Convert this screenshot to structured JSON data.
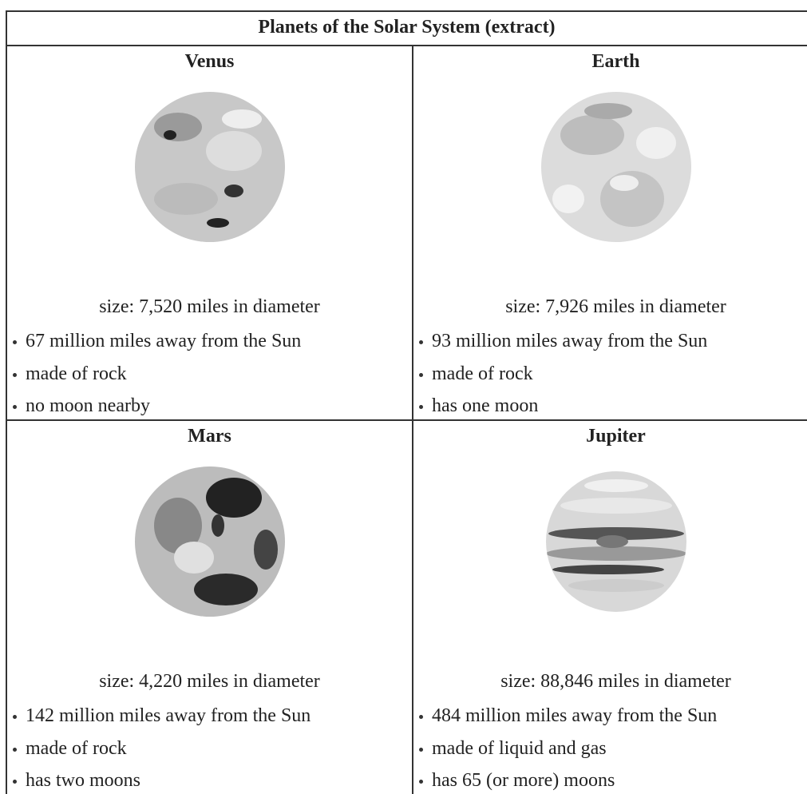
{
  "table": {
    "title": "Planets of the Solar System (extract)",
    "planets": [
      {
        "name": "Venus",
        "size": "size: 7,520 miles in diameter",
        "facts": [
          "67 million miles away from the Sun",
          "made of rock",
          "no moon nearby"
        ]
      },
      {
        "name": "Earth",
        "size": "size: 7,926 miles in diameter",
        "facts": [
          "93 million miles away from the Sun",
          "made of rock",
          "has one moon"
        ]
      },
      {
        "name": "Mars",
        "size": "size: 4,220 miles in diameter",
        "facts": [
          "142 million miles away from the Sun",
          "made of rock",
          "has two moons"
        ]
      },
      {
        "name": "Jupiter",
        "size": "size: 88,846 miles in diameter",
        "facts": [
          "484 million miles away from the Sun",
          "made of liquid and gas",
          "has 65 (or more) moons"
        ]
      }
    ]
  }
}
